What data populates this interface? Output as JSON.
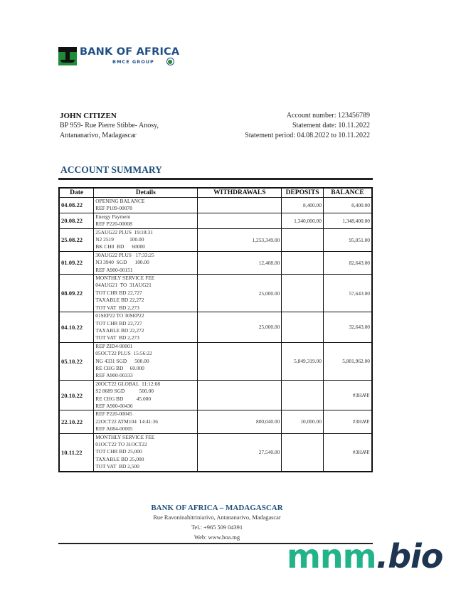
{
  "bank": {
    "name": "BANK OF AFRICA",
    "group": "BMCE GROUP",
    "brand_color": "#1f4f86",
    "logo_color": "#1e8a3a"
  },
  "customer": {
    "name": "JOHN CITIZEN",
    "address_line1": "BP 959- Rue Pierre Stibbe- Anosy,",
    "address_line2": "Antananarivo, Madagascar"
  },
  "account": {
    "number": "Account number: 123456789",
    "statement_date": "Statement date: 10.11.2022",
    "period": "Statement period: 04.08.2022 to 10.11.2022"
  },
  "summary": {
    "title": "ACCOUNT SUMMARY",
    "columns": [
      "Date",
      "Details",
      "WITHDRAWALS",
      "DEPOSITS",
      "BALANCE"
    ],
    "rows": [
      {
        "date": "04.08.22",
        "details": [
          "OPENING BALANCE",
          "REF P109-00078"
        ],
        "withdrawal": "",
        "deposit": "8,400.00",
        "balance": "8,400.00"
      },
      {
        "date": "20.08.22",
        "details": [
          "Energy Payment",
          "REF P220-00008"
        ],
        "withdrawal": "",
        "deposit": "1,340,000.00",
        "balance": "1,348,400.00"
      },
      {
        "date": "25.08.22",
        "details": [
          "25AUG22 PLUS  19:18:31",
          "N2 2519            100.00",
          "BK CH0  BD      60000"
        ],
        "withdrawal": "1,253,349.00",
        "deposit": "",
        "balance": "95,051.00"
      },
      {
        "date": "01.09.22",
        "details": [
          "30AUG22 PLUS   17:33:25",
          "N3 3940  SGD      100.00",
          "REF A900-00151"
        ],
        "withdrawal": "12,408.00",
        "deposit": "",
        "balance": "82,643.00"
      },
      {
        "date": "08.09.22",
        "details": [
          "MONTHLY SERVICE FEE",
          "04AUG21  TO  31AUG21",
          "TOT CHR BD 22,727",
          "TAXABLE BD 22,272",
          "TOT VAT  BD 2,273"
        ],
        "withdrawal": "25,000.00",
        "deposit": "",
        "balance": "57,643.00"
      },
      {
        "date": "04.10.22",
        "details": [
          "01SEP22 TO 30SEP22",
          "TOT CHR BD 22,727",
          "TAXABLE BD 22,272",
          "TOT VAT  BD 2,273"
        ],
        "withdrawal": "25,000.00",
        "deposit": "",
        "balance": "32,643.00"
      },
      {
        "date": "05.10.22",
        "details": [
          "REP ZID4-90001",
          "05OCT22 PLUS  15:56:22",
          "NG 4331 SGD      500.00",
          "RE CHG BD     60.000",
          "REF A900-00333"
        ],
        "withdrawal": "",
        "deposit": "5,849,319.00",
        "balance": "5,881,962.00"
      },
      {
        "date": "20.10.22",
        "details": [
          "20OCT22 GLOBAL  11:12:08",
          "S2 8689 SGD           500.00",
          "RE CHG BD          45.000",
          "REF A900-00436"
        ],
        "withdrawal": "",
        "deposit": "",
        "balance": "#ЗНАЧ!"
      },
      {
        "date": "22.10.22",
        "details": [
          "REF P220-00045",
          "22OCT22 ATM104  14:41:36",
          "REF A084-00005"
        ],
        "withdrawal": "800,040.00",
        "deposit": "10,000.00",
        "balance": "#ЗНАЧ!"
      },
      {
        "date": "10.11.22",
        "details": [
          "MONTHLY SERVICE FEE",
          "01OCT22 TO 31OCT22",
          "TOT CHR BD 25,000",
          "TAXABLE BD 25,000",
          "TOT VAT  BD 2,500"
        ],
        "withdrawal": "27,540.00",
        "deposit": "",
        "balance": "#ЗНАЧ!"
      }
    ]
  },
  "footer": {
    "name": "BANK OF AFRICA – MADAGASCAR",
    "address": "Rue Ravoninahitriniarivo, Antananarivo, Madagascar",
    "tel": "Tel.: +965 509 04391",
    "web": "Web: www.boa.mg"
  },
  "watermark": {
    "part1": "mnm",
    "part2": ".bio"
  }
}
